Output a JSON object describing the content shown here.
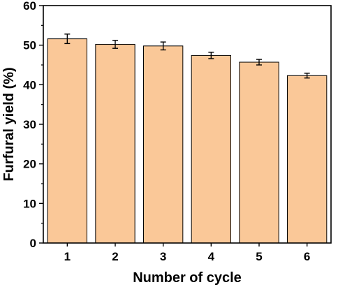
{
  "chart_data": {
    "type": "bar",
    "title": "",
    "xlabel": "Number of cycle",
    "ylabel": "Furfural yield (%)",
    "categories": [
      "1",
      "2",
      "3",
      "4",
      "5",
      "6"
    ],
    "values": [
      51.6,
      50.2,
      49.8,
      47.4,
      45.7,
      42.3
    ],
    "errors": [
      1.2,
      1.0,
      1.0,
      0.8,
      0.7,
      0.6
    ],
    "ylim": [
      0,
      60
    ],
    "yticks": [
      "0",
      "10",
      "20",
      "30",
      "40",
      "50",
      "60"
    ],
    "grid": false,
    "legend": "none",
    "bar_color": "#FAC898",
    "bar_edge_color": "#000000"
  }
}
